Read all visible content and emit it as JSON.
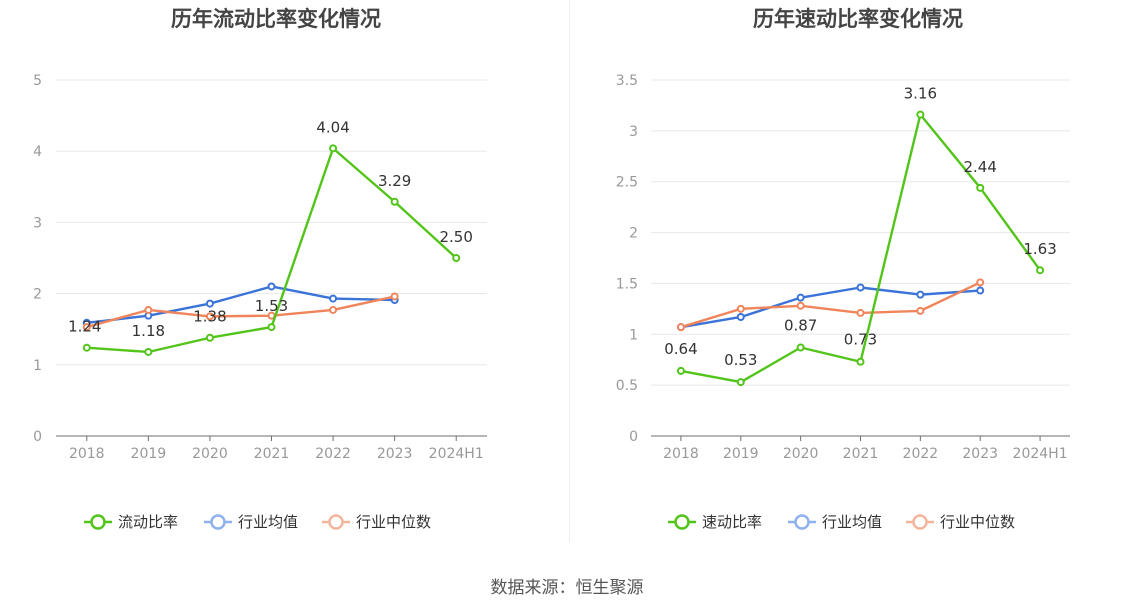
{
  "colors": {
    "series_primary": "#52c41a",
    "series_avg": "#3b73d8",
    "series_median": "#f0845a",
    "legend_avg": "#8fb2ef",
    "legend_median": "#f5b59d",
    "grid": "#e6e8ee",
    "axis": "#6e6e6e",
    "tick_text": "#999999",
    "title_text": "#444444",
    "label_text": "#333333"
  },
  "footer": {
    "source": "数据来源：恒生聚源"
  },
  "chart_data": [
    {
      "type": "line",
      "title": "历年流动比率变化情况",
      "categories": [
        "2018",
        "2019",
        "2020",
        "2021",
        "2022",
        "2023",
        "2024H1"
      ],
      "ylim": [
        0,
        5
      ],
      "yticks": [
        0,
        1,
        2,
        3,
        4,
        5
      ],
      "ytick_labels": [
        "0",
        "1",
        "2",
        "3",
        "4",
        "5"
      ],
      "grid": true,
      "legend_position": "bottom",
      "series": [
        {
          "name": "流动比率",
          "key": "primary",
          "values": [
            1.24,
            1.18,
            1.38,
            1.53,
            4.04,
            3.29,
            2.5
          ],
          "labels": [
            "1.24",
            "1.18",
            "1.38",
            "1.53",
            "4.04",
            "3.29",
            "2.50"
          ]
        },
        {
          "name": "行业均值",
          "key": "avg",
          "values": [
            1.59,
            1.69,
            1.86,
            2.1,
            1.93,
            1.91,
            null
          ]
        },
        {
          "name": "行业中位数",
          "key": "median",
          "values": [
            1.53,
            1.77,
            1.68,
            1.69,
            1.77,
            1.96,
            null
          ]
        }
      ]
    },
    {
      "type": "line",
      "title": "历年速动比率变化情况",
      "categories": [
        "2018",
        "2019",
        "2020",
        "2021",
        "2022",
        "2023",
        "2024H1"
      ],
      "ylim": [
        0,
        3.5
      ],
      "yticks": [
        0,
        0.5,
        1,
        1.5,
        2,
        2.5,
        3,
        3.5
      ],
      "ytick_labels": [
        "0",
        "0.5",
        "1",
        "1.5",
        "2",
        "2.5",
        "3",
        "3.5"
      ],
      "grid": true,
      "legend_position": "bottom",
      "series": [
        {
          "name": "速动比率",
          "key": "primary",
          "values": [
            0.64,
            0.53,
            0.87,
            0.73,
            3.16,
            2.44,
            1.63
          ],
          "labels": [
            "0.64",
            "0.53",
            "0.87",
            "0.73",
            "3.16",
            "2.44",
            "1.63"
          ]
        },
        {
          "name": "行业均值",
          "key": "avg",
          "values": [
            1.07,
            1.17,
            1.36,
            1.46,
            1.39,
            1.43,
            null
          ]
        },
        {
          "name": "行业中位数",
          "key": "median",
          "values": [
            1.07,
            1.25,
            1.28,
            1.21,
            1.23,
            1.51,
            null
          ]
        }
      ]
    }
  ]
}
